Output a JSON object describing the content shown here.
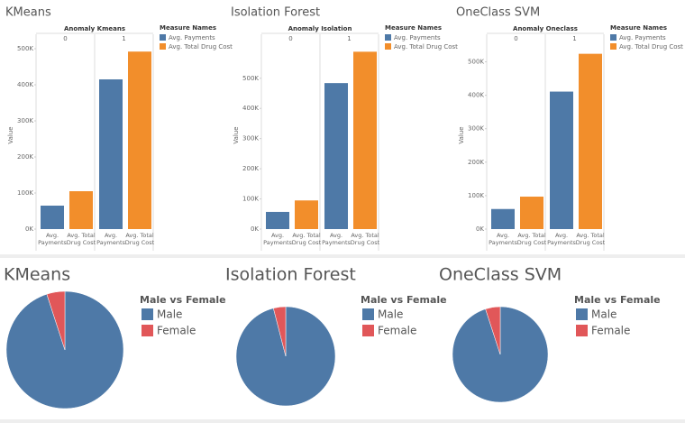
{
  "chart_data": [
    {
      "type": "bar",
      "title": "KMeans",
      "header": "Anomaly Kmeans",
      "y_label": "Value",
      "legend_title": "Measure Names",
      "groups": [
        "0",
        "1"
      ],
      "series": [
        {
          "name": "Avg. Payments",
          "color": "#4e79a7",
          "values": [
            65000,
            415000
          ]
        },
        {
          "name": "Avg. Total Drug Cost",
          "color": "#f28e2b",
          "values": [
            105000,
            492000
          ]
        }
      ],
      "ylim": [
        0,
        510000
      ],
      "yticks": [
        {
          "value": 0,
          "label": "0K"
        },
        {
          "value": 100000,
          "label": "100K"
        },
        {
          "value": 200000,
          "label": "200K"
        },
        {
          "value": 300000,
          "label": "300K"
        },
        {
          "value": 400000,
          "label": "400K"
        },
        {
          "value": 500000,
          "label": "500K"
        }
      ]
    },
    {
      "type": "bar",
      "title": "Isolation Forest",
      "header": "Anomaly Isolation",
      "y_label": "Value",
      "legend_title": "Measure Names",
      "groups": [
        "0",
        "1"
      ],
      "series": [
        {
          "name": "Avg. Payments",
          "color": "#4e79a7",
          "values": [
            57000,
            484000
          ]
        },
        {
          "name": "Avg. Total Drug Cost",
          "color": "#f28e2b",
          "values": [
            95000,
            588000
          ]
        }
      ],
      "ylim": [
        0,
        610000
      ],
      "yticks": [
        {
          "value": 0,
          "label": "0K"
        },
        {
          "value": 100000,
          "label": "100K"
        },
        {
          "value": 200000,
          "label": "200K"
        },
        {
          "value": 300000,
          "label": "300K"
        },
        {
          "value": 400000,
          "label": "400K"
        },
        {
          "value": 500000,
          "label": "500K"
        }
      ]
    },
    {
      "type": "bar",
      "title": "OneClass SVM",
      "header": "Anomaly Oneclass",
      "y_label": "Value",
      "legend_title": "Measure Names",
      "groups": [
        "0",
        "1"
      ],
      "series": [
        {
          "name": "Avg. Payments",
          "color": "#4e79a7",
          "values": [
            60000,
            411000
          ]
        },
        {
          "name": "Avg. Total Drug Cost",
          "color": "#f28e2b",
          "values": [
            97000,
            524000
          ]
        }
      ],
      "ylim": [
        0,
        550000
      ],
      "yticks": [
        {
          "value": 0,
          "label": "0K"
        },
        {
          "value": 100000,
          "label": "100K"
        },
        {
          "value": 200000,
          "label": "200K"
        },
        {
          "value": 300000,
          "label": "300K"
        },
        {
          "value": 400000,
          "label": "400K"
        },
        {
          "value": 500000,
          "label": "500K"
        }
      ]
    },
    {
      "type": "pie",
      "title": "KMeans",
      "legend_title": "Male vs Female",
      "categories": [
        "Male",
        "Female"
      ],
      "values": [
        95,
        5
      ],
      "colors": [
        "#4e79a7",
        "#e15759"
      ]
    },
    {
      "type": "pie",
      "title": "Isolation Forest",
      "legend_title": "Male vs Female",
      "categories": [
        "Male",
        "Female"
      ],
      "values": [
        96,
        4
      ],
      "colors": [
        "#4e79a7",
        "#e15759"
      ]
    },
    {
      "type": "pie",
      "title": "OneClass SVM",
      "legend_title": "Male vs Female",
      "categories": [
        "Male",
        "Female"
      ],
      "values": [
        95,
        5
      ],
      "colors": [
        "#4e79a7",
        "#e15759"
      ]
    }
  ]
}
